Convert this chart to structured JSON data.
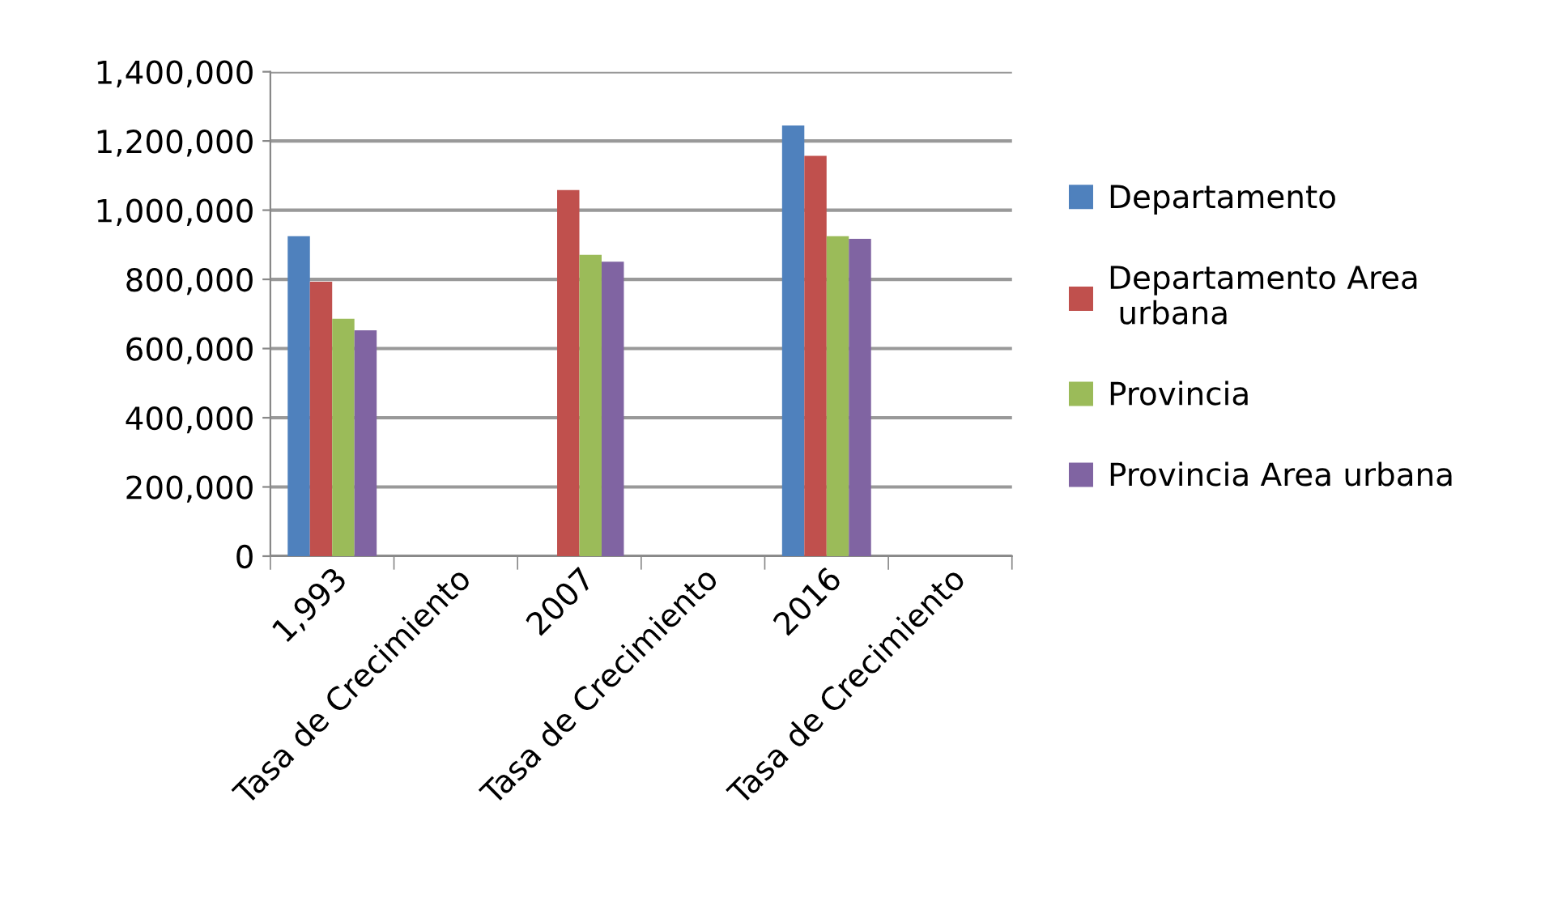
{
  "chart_data": {
    "type": "bar",
    "categories": [
      "1,993",
      "Tasa de Crecimiento",
      "2007",
      "Tasa de Crecimiento",
      "2016",
      "Tasa de Crecimiento"
    ],
    "series": [
      {
        "name": "Departamento",
        "color": "#4f81bd",
        "values": [
          925000,
          0,
          0,
          0,
          1245000,
          0
        ]
      },
      {
        "name": "Departamento Area urbana",
        "color": "#c0504d",
        "values": [
          793000,
          null,
          1058000,
          null,
          1157000,
          null
        ]
      },
      {
        "name": "Provincia",
        "color": "#9bbb59",
        "values": [
          686000,
          0,
          871000,
          0,
          925000,
          0
        ]
      },
      {
        "name": "Provincia Area urbana",
        "color": "#8064a2",
        "values": [
          653000,
          null,
          851000,
          null,
          917000,
          null
        ]
      }
    ],
    "ylim": [
      0,
      1400000
    ],
    "yticks": [
      {
        "value": 0,
        "label": "0"
      },
      {
        "value": 200000,
        "label": "200,000"
      },
      {
        "value": 400000,
        "label": "400,000"
      },
      {
        "value": 600000,
        "label": "600,000"
      },
      {
        "value": 800000,
        "label": "800,000"
      },
      {
        "value": 1000000,
        "label": "1,000,000"
      },
      {
        "value": 1200000,
        "label": "1,200,000"
      },
      {
        "value": 1400000,
        "label": "1,400,000"
      }
    ],
    "grid": "y",
    "legend": "right"
  }
}
